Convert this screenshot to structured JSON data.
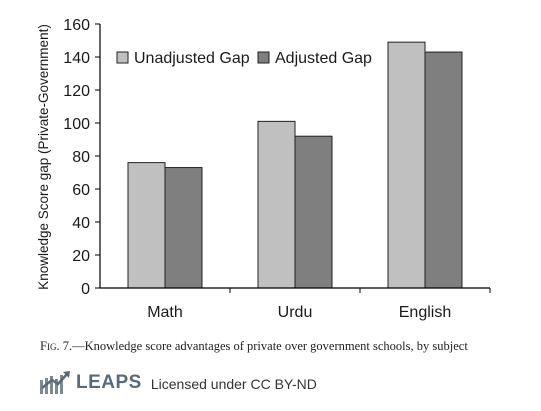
{
  "chart_data": {
    "type": "bar",
    "categories": [
      "Math",
      "Urdu",
      "English"
    ],
    "series": [
      {
        "name": "Unadjusted Gap",
        "values": [
          76,
          101,
          149
        ],
        "color": "#c0c0c0"
      },
      {
        "name": "Adjusted Gap",
        "values": [
          73,
          92,
          143
        ],
        "color": "#7f7f7f"
      }
    ],
    "title": "",
    "xlabel": "",
    "ylabel": "Knowledge Score gap (Private-Government)",
    "ylim": [
      0,
      160
    ],
    "yticks": [
      0,
      20,
      40,
      60,
      80,
      100,
      120,
      140,
      160
    ],
    "grid": false,
    "legend_position": "top-left"
  },
  "caption": {
    "fig_label": "Fig. 7.",
    "text": "—Knowledge score advantages of private over government schools, by subject"
  },
  "footer": {
    "logo_icon": "leaps-logo-icon",
    "brand": "LEAPS",
    "license": "Licensed under CC BY-ND"
  }
}
